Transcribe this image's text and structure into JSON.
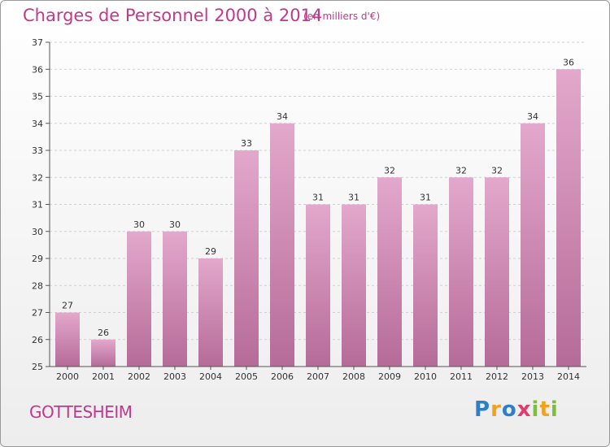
{
  "header": {
    "title": "Charges de Personnel 2000 à 2014",
    "unit": "(en milliers d'€)"
  },
  "footer": {
    "commune": "GOTTESHEIM",
    "logo": "Proxiti"
  },
  "colors": {
    "title": "#c0398c",
    "bar_top": "#e3a8cc",
    "bar_bottom": "#b56b98",
    "grid": "#cfcfcf",
    "axis": "#555555"
  },
  "chart_data": {
    "type": "bar",
    "title": "Charges de Personnel 2000 à 2014",
    "subtitle": "(en milliers d'€)",
    "xlabel": "",
    "ylabel": "",
    "categories": [
      "2000",
      "2001",
      "2002",
      "2003",
      "2004",
      "2005",
      "2006",
      "2007",
      "2008",
      "2009",
      "2010",
      "2011",
      "2012",
      "2013",
      "2014"
    ],
    "values": [
      27,
      26,
      30,
      30,
      29,
      33,
      34,
      31,
      31,
      32,
      31,
      32,
      32,
      34,
      36
    ],
    "ylim": [
      25,
      37
    ],
    "yticks": [
      25,
      26,
      27,
      28,
      29,
      30,
      31,
      32,
      33,
      34,
      35,
      36,
      37
    ],
    "grid": true,
    "data_labels": true
  }
}
